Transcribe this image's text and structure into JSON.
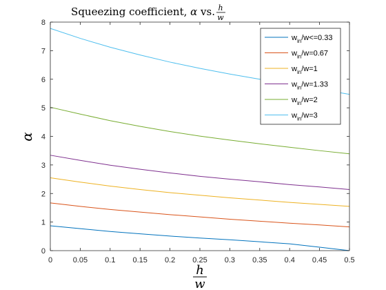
{
  "chart_data": {
    "type": "line",
    "title": {
      "prefix": "Squeezing coefficient, ",
      "symbol": "α",
      "mid": " vs. ",
      "frac_num": "h",
      "frac_den": "w"
    },
    "xlabel": {
      "num": "h",
      "den": "w"
    },
    "ylabel": "α",
    "xlim": [
      0,
      0.5
    ],
    "ylim": [
      0,
      8
    ],
    "x_ticks": [
      0,
      0.05,
      0.1,
      0.15,
      0.2,
      0.25,
      0.3,
      0.35,
      0.4,
      0.45,
      0.5
    ],
    "x_tick_labels": [
      "0",
      "0.05",
      "0.1",
      "0.15",
      "0.2",
      "0.25",
      "0.3",
      "0.35",
      "0.4",
      "0.45",
      "0.5"
    ],
    "y_ticks": [
      0,
      1,
      2,
      3,
      4,
      5,
      6,
      7,
      8
    ],
    "y_tick_labels": [
      "0",
      "1",
      "2",
      "3",
      "4",
      "5",
      "6",
      "7",
      "8"
    ],
    "grid": false,
    "legend_position": "top-right",
    "x": [
      0,
      0.05,
      0.1,
      0.15,
      0.2,
      0.25,
      0.3,
      0.35,
      0.4,
      0.45,
      0.5
    ],
    "series": [
      {
        "label_prefix": "w",
        "label_sub": "in",
        "label_suffix": "/w<=0.33",
        "color": "#0072BD",
        "values": [
          0.87,
          0.77,
          0.67,
          0.59,
          0.51,
          0.44,
          0.38,
          0.31,
          0.24,
          0.12,
          0.0
        ]
      },
      {
        "label_prefix": "w",
        "label_sub": "in",
        "label_suffix": "/w=0.67",
        "color": "#D95319",
        "values": [
          1.67,
          1.55,
          1.44,
          1.35,
          1.26,
          1.18,
          1.1,
          1.03,
          0.96,
          0.9,
          0.83
        ]
      },
      {
        "label_prefix": "w",
        "label_sub": "in",
        "label_suffix": "/w=1",
        "color": "#EDB120",
        "values": [
          2.55,
          2.4,
          2.26,
          2.14,
          2.03,
          1.94,
          1.85,
          1.77,
          1.69,
          1.62,
          1.55
        ]
      },
      {
        "label_prefix": "w",
        "label_sub": "in",
        "label_suffix": "/w=1.33",
        "color": "#7E2F8E",
        "values": [
          3.34,
          3.16,
          2.99,
          2.85,
          2.72,
          2.6,
          2.5,
          2.41,
          2.31,
          2.23,
          2.14
        ]
      },
      {
        "label_prefix": "w",
        "label_sub": "in",
        "label_suffix": "/w=2",
        "color": "#77AC30",
        "values": [
          5.02,
          4.78,
          4.55,
          4.35,
          4.17,
          4.01,
          3.87,
          3.74,
          3.62,
          3.5,
          3.39
        ]
      },
      {
        "label_prefix": "w",
        "label_sub": "in",
        "label_suffix": "/w=3",
        "color": "#4DBEEE",
        "values": [
          7.78,
          7.43,
          7.12,
          6.85,
          6.6,
          6.38,
          6.18,
          6.0,
          5.83,
          5.65,
          5.47
        ]
      }
    ]
  }
}
